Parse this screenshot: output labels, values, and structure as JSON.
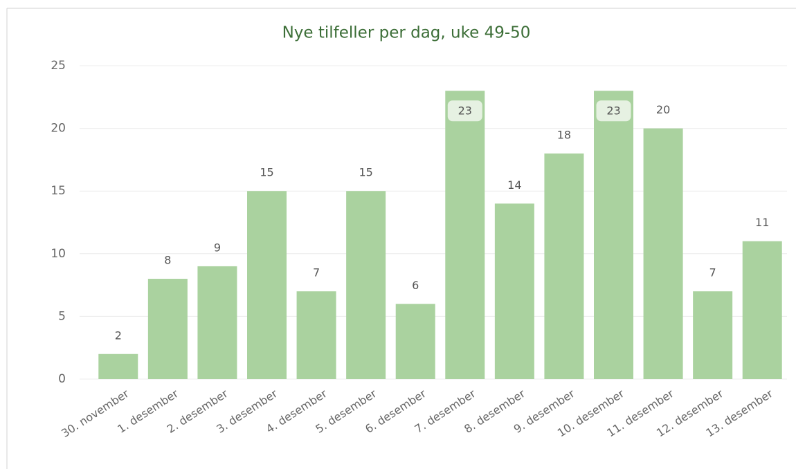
{
  "chart_data": {
    "type": "bar",
    "title": "Nye tilfeller per dag, uke 49-50",
    "categories": [
      "30. november",
      "1. desember",
      "2. desember",
      "3. desember",
      "4. desember",
      "5. desember",
      "6. desember",
      "7. desember",
      "8. desember",
      "9. desember",
      "10. desember",
      "11. desember",
      "12. desember",
      "13. desember"
    ],
    "values": [
      2,
      8,
      9,
      15,
      7,
      15,
      6,
      23,
      14,
      18,
      23,
      20,
      7,
      11
    ],
    "color": "#aad29f",
    "ylim": [
      0,
      25
    ],
    "yticks": [
      0,
      5,
      10,
      15,
      20,
      25
    ],
    "grid": true
  }
}
